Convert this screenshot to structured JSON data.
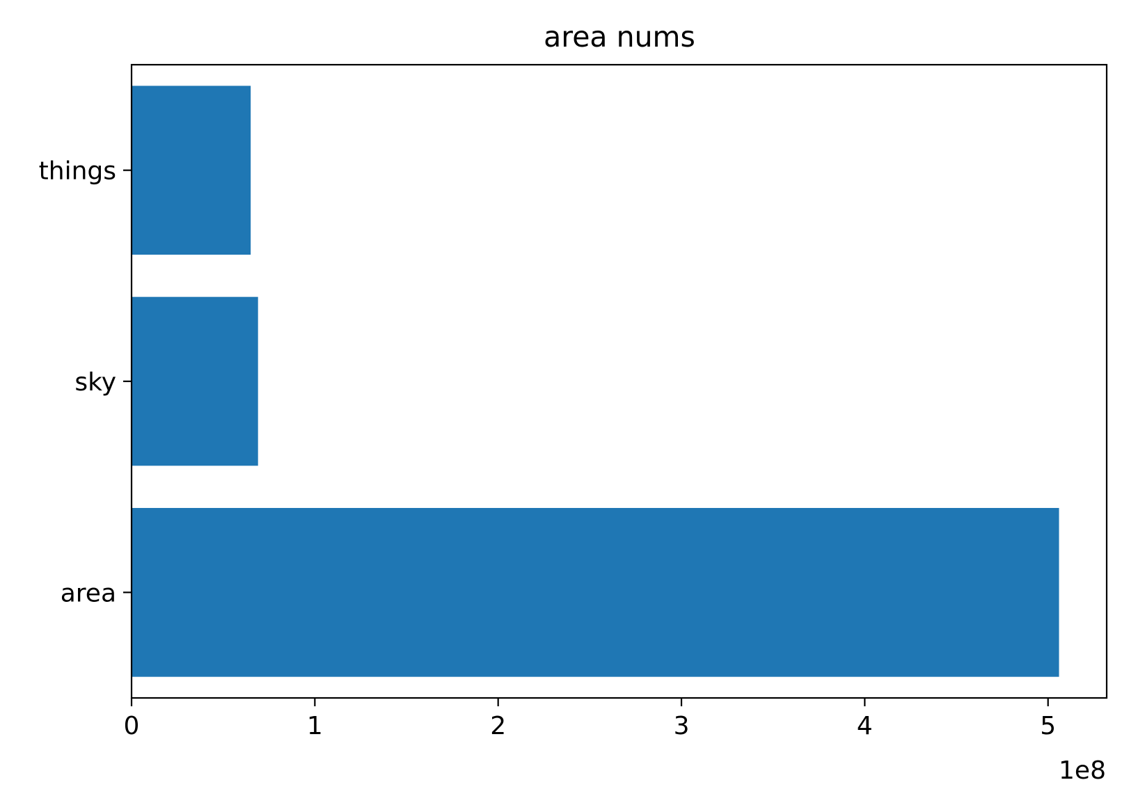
{
  "chart_data": {
    "type": "bar",
    "orientation": "horizontal",
    "title": "area nums",
    "xlabel": "",
    "ylabel": "",
    "categories": [
      "area",
      "sky",
      "things"
    ],
    "values": [
      506000000,
      69000000,
      65000000
    ],
    "xlim": [
      0,
      532000000
    ],
    "x_ticks": [
      0,
      1,
      2,
      3,
      4,
      5
    ],
    "x_tick_labels": [
      "0",
      "1",
      "2",
      "3",
      "4",
      "5"
    ],
    "x_offset_text": "1e8",
    "x_scale_factor": 100000000,
    "bar_color": "#1f77b4",
    "grid": false,
    "legend": "none"
  }
}
